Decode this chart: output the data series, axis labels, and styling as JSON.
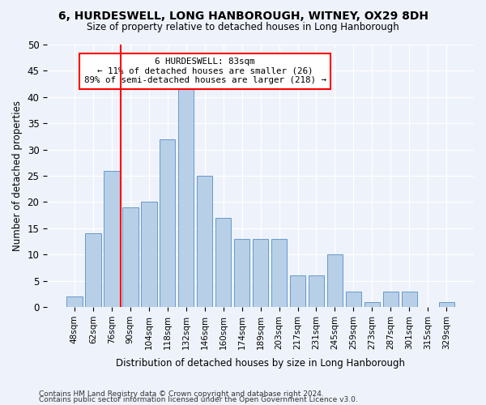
{
  "title1": "6, HURDESWELL, LONG HANBOROUGH, WITNEY, OX29 8DH",
  "title2": "Size of property relative to detached houses in Long Hanborough",
  "xlabel": "Distribution of detached houses by size in Long Hanborough",
  "ylabel": "Number of detached properties",
  "categories": [
    "48sqm",
    "62sqm",
    "76sqm",
    "90sqm",
    "104sqm",
    "118sqm",
    "132sqm",
    "146sqm",
    "160sqm",
    "174sqm",
    "189sqm",
    "203sqm",
    "217sqm",
    "231sqm",
    "245sqm",
    "259sqm",
    "273sqm",
    "287sqm",
    "301sqm",
    "315sqm",
    "329sqm"
  ],
  "values": [
    2,
    14,
    26,
    19,
    20,
    32,
    42,
    25,
    17,
    13,
    13,
    13,
    6,
    6,
    10,
    3,
    1,
    3,
    3,
    0,
    1
  ],
  "bar_color": "#b8cfe8",
  "bar_edge_color": "#6699cc",
  "annotation_text": "6 HURDESWELL: 83sqm\n← 11% of detached houses are smaller (26)\n89% of semi-detached houses are larger (218) →",
  "annotation_box_color": "white",
  "annotation_box_edge_color": "red",
  "vline_color": "red",
  "ylim": [
    0,
    50
  ],
  "yticks": [
    0,
    5,
    10,
    15,
    20,
    25,
    30,
    35,
    40,
    45,
    50
  ],
  "background_color": "#eef2fb",
  "footer1": "Contains HM Land Registry data © Crown copyright and database right 2024.",
  "footer2": "Contains public sector information licensed under the Open Government Licence v3.0.",
  "vline_index": 2.5
}
